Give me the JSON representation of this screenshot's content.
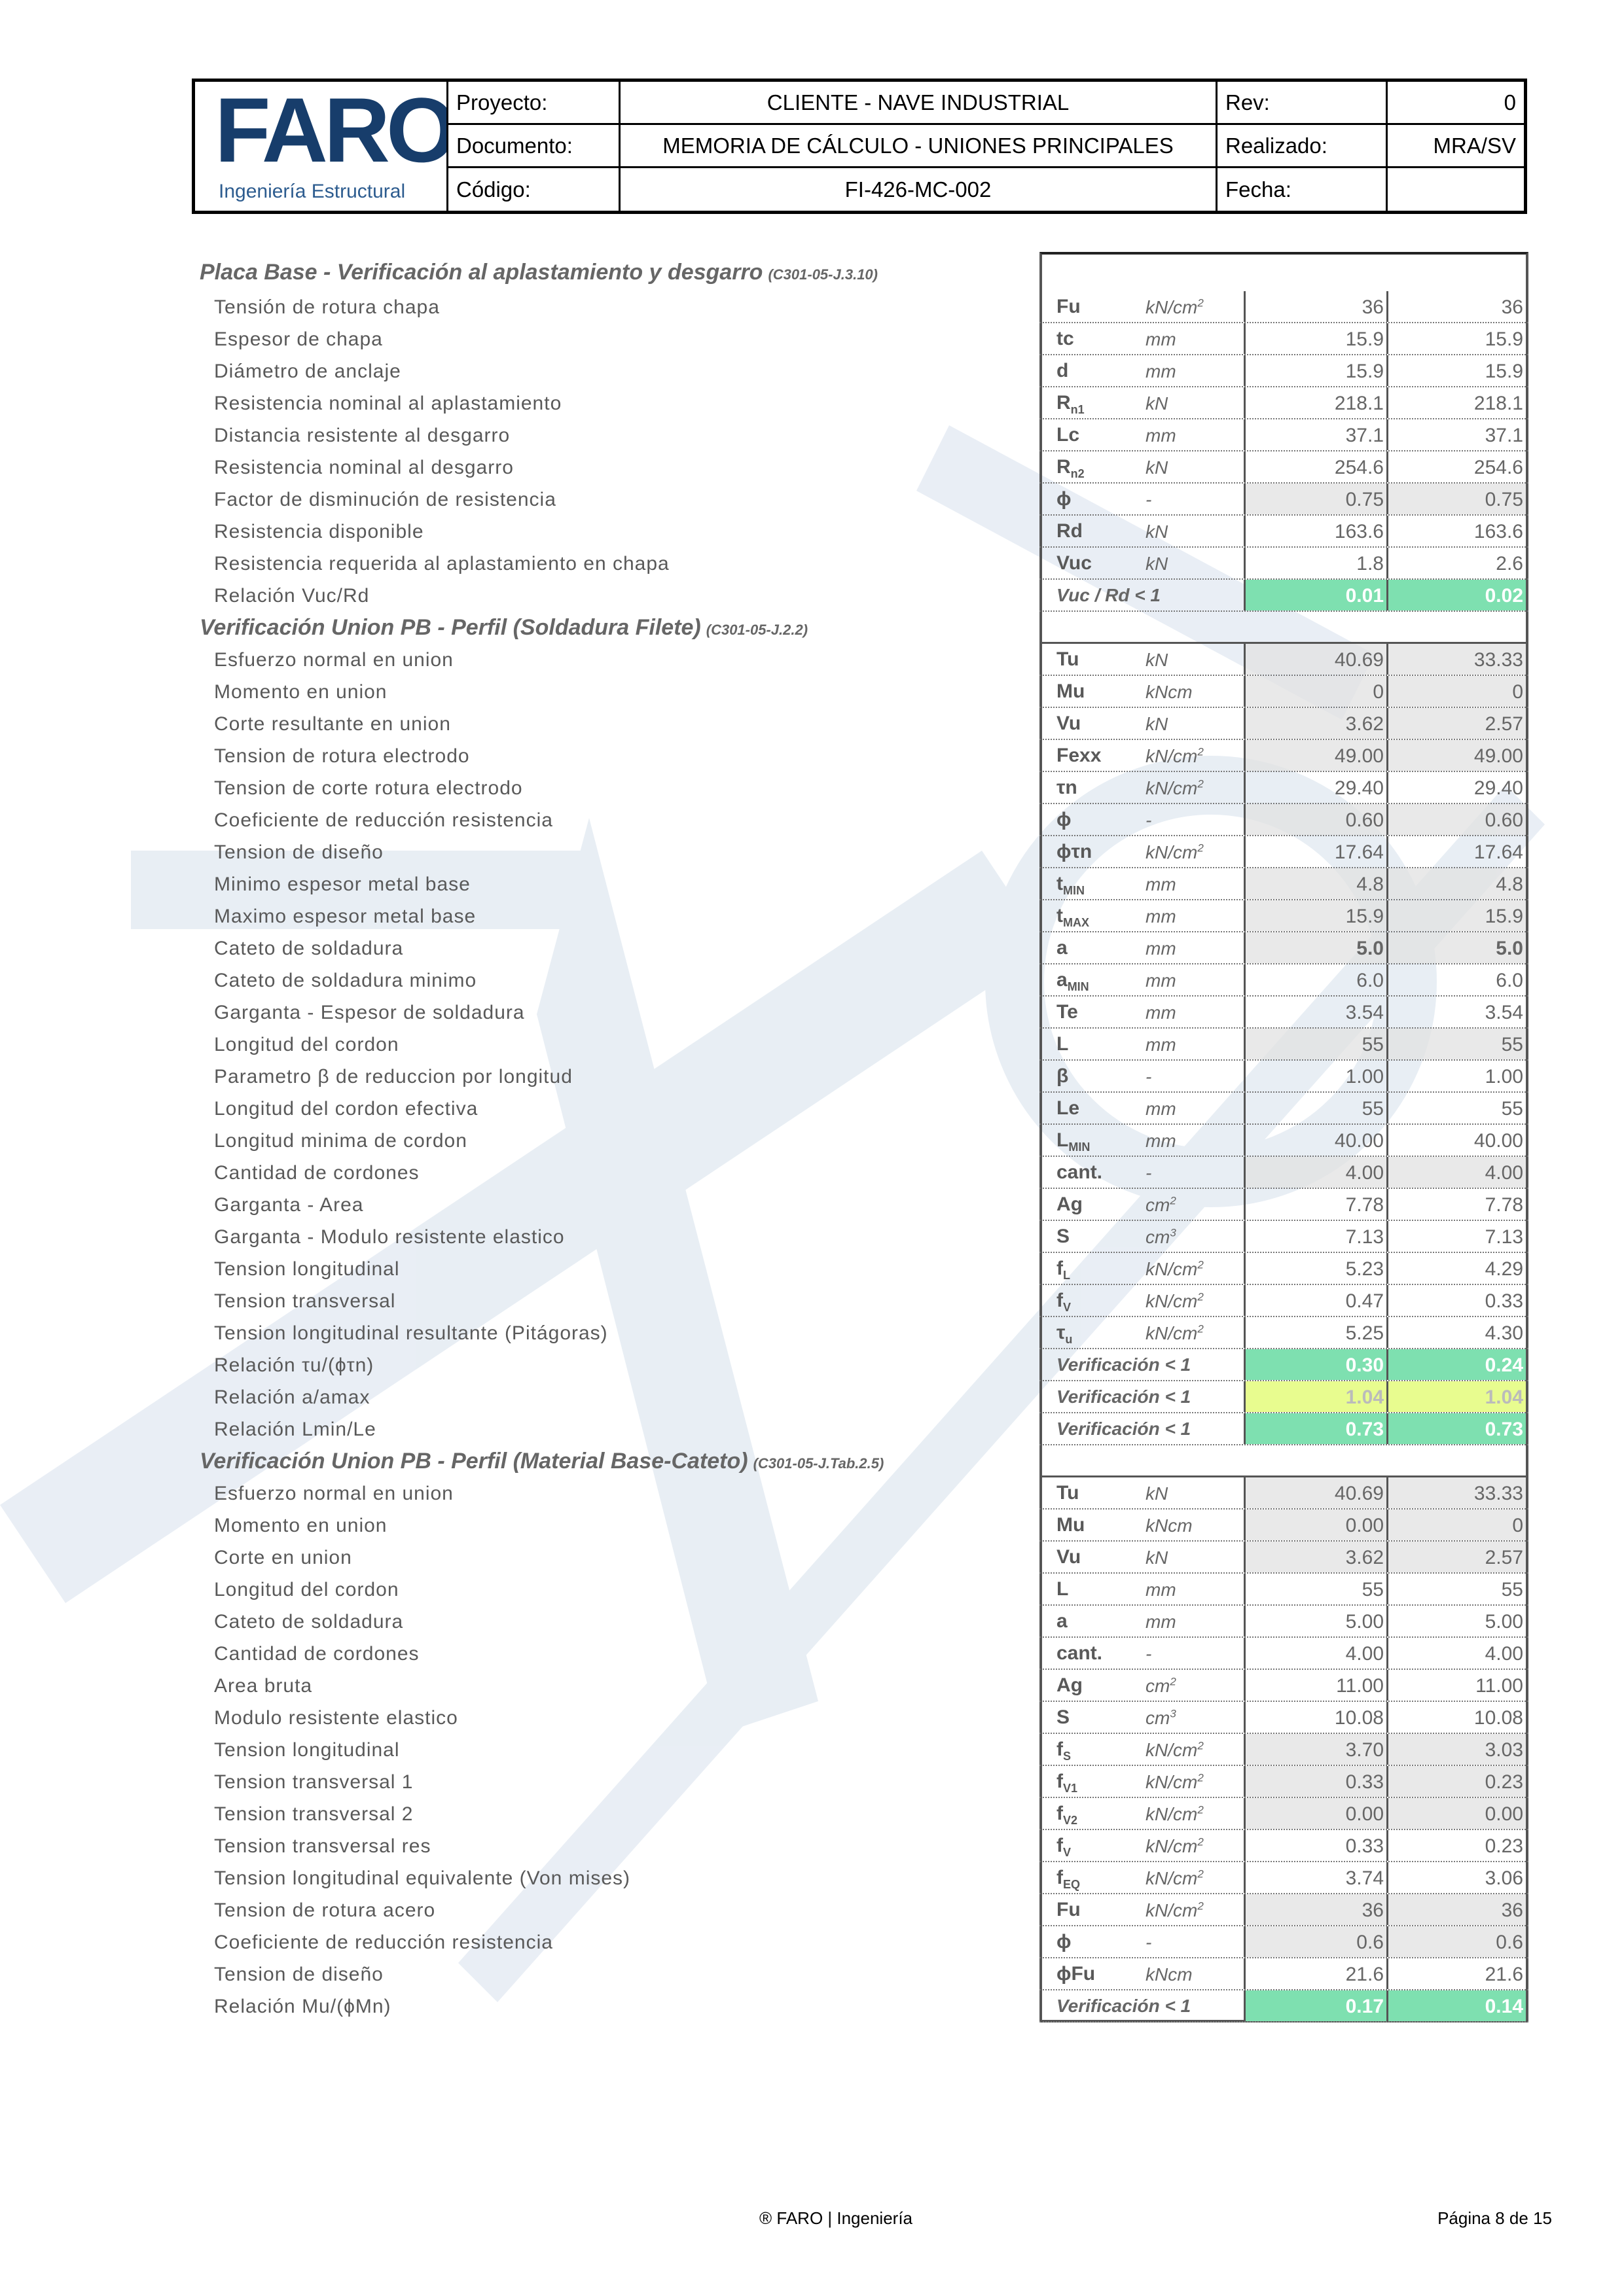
{
  "header": {
    "logo_text": "FARO",
    "logo_subtitle": "Ingeniería Estructural",
    "rows": [
      {
        "label": "Proyecto:",
        "value": "CLIENTE - NAVE INDUSTRIAL",
        "label2": "Rev:",
        "value2": "0"
      },
      {
        "label": "Documento:",
        "value": "MEMORIA DE CÁLCULO - UNIONES PRINCIPALES",
        "label2": "Realizado:",
        "value2": "MRA/SV"
      },
      {
        "label": "Código:",
        "value": "FI-426-MC-002",
        "label2": "Fecha:",
        "value2": ""
      }
    ]
  },
  "colors": {
    "ok": "#7ee0b0",
    "warn": "#e8fc8f",
    "brand": "#173d6b"
  },
  "sections": [
    {
      "title": "Placa Base - Verificación al aplastamiento y desgarro",
      "code": "(C301-05-J.3.10)",
      "rows": [
        {
          "label": "Tensión de rotura chapa",
          "sym": "Fu",
          "unit": "kN/cm",
          "sup": "2",
          "v1": "36",
          "v2": "36"
        },
        {
          "label": "Espesor de chapa",
          "sym": "tc",
          "unit": "mm",
          "v1": "15.9",
          "v2": "15.9"
        },
        {
          "label": "Diámetro de anclaje",
          "sym": "d",
          "unit": "mm",
          "v1": "15.9",
          "v2": "15.9"
        },
        {
          "label": "Resistencia nominal al aplastamiento",
          "sym": "R",
          "sub": "n1",
          "unit": "kN",
          "v1": "218.1",
          "v2": "218.1"
        },
        {
          "label": "Distancia resistente al desgarro",
          "sym": "Lc",
          "unit": "mm",
          "v1": "37.1",
          "v2": "37.1"
        },
        {
          "label": "Resistencia nominal al desgarro",
          "sym": "R",
          "sub": "n2",
          "unit": "kN",
          "v1": "254.6",
          "v2": "254.6"
        },
        {
          "label": "Factor de disminución de resistencia",
          "sym": "ϕ",
          "unit": "-",
          "v1": "0.75",
          "v2": "0.75",
          "shade": true
        },
        {
          "label": "Resistencia disponible",
          "sym": "Rd",
          "unit": "kN",
          "v1": "163.6",
          "v2": "163.6"
        },
        {
          "label": "Resistencia requerida al aplastamiento en chapa",
          "sym": "Vuc",
          "unit": "kN",
          "v1": "1.8",
          "v2": "2.6"
        },
        {
          "label": "Relación Vuc/Rd",
          "verif": "Vuc / Rd < 1",
          "v1": "0.01",
          "v2": "0.02",
          "status1": "ok",
          "status2": "ok"
        }
      ]
    },
    {
      "title": "Verificación Union PB - Perfil (Soldadura Filete)",
      "code": "(C301-05-J.2.2)",
      "rows": [
        {
          "label": "Esfuerzo normal en union",
          "sym": "Tu",
          "unit": "kN",
          "v1": "40.69",
          "v2": "33.33",
          "shade": true
        },
        {
          "label": "Momento en union",
          "sym": "Mu",
          "unit": "kNcm",
          "v1": "0",
          "v2": "0",
          "shade": true
        },
        {
          "label": "Corte resultante en union",
          "sym": "Vu",
          "unit": "kN",
          "v1": "3.62",
          "v2": "2.57",
          "shade": true
        },
        {
          "label": "Tension de rotura electrodo",
          "sym": "Fexx",
          "unit": "kN/cm",
          "sup": "2",
          "v1": "49.00",
          "v2": "49.00",
          "shade": true
        },
        {
          "label": "Tension de corte rotura electrodo",
          "sym": "τn",
          "unit": "kN/cm",
          "sup": "2",
          "v1": "29.40",
          "v2": "29.40"
        },
        {
          "label": "Coeficiente de reducción resistencia",
          "sym": "ϕ",
          "unit": "-",
          "v1": "0.60",
          "v2": "0.60",
          "shade": true
        },
        {
          "label": "Tension de diseño",
          "sym": "ϕτn",
          "unit": "kN/cm",
          "sup": "2",
          "v1": "17.64",
          "v2": "17.64"
        },
        {
          "label": "Minimo espesor metal base",
          "sym": "t",
          "sub": "MIN",
          "unit": "mm",
          "v1": "4.8",
          "v2": "4.8",
          "shade": true
        },
        {
          "label": "Maximo espesor metal base",
          "sym": "t",
          "sub": "MAX",
          "unit": "mm",
          "v1": "15.9",
          "v2": "15.9",
          "shade": true
        },
        {
          "label": "Cateto de soldadura",
          "sym": "a",
          "unit": "mm",
          "v1": "5.0",
          "v2": "5.0",
          "shade": true,
          "bold": true
        },
        {
          "label": "Cateto de soldadura minimo",
          "sym": "a",
          "sub": "MIN",
          "unit": "mm",
          "v1": "6.0",
          "v2": "6.0"
        },
        {
          "label": "Garganta - Espesor de soldadura",
          "sym": "Te",
          "unit": "mm",
          "v1": "3.54",
          "v2": "3.54"
        },
        {
          "label": "Longitud del cordon",
          "sym": "L",
          "unit": "mm",
          "v1": "55",
          "v2": "55",
          "shade": true
        },
        {
          "label": "Parametro β de reduccion por longitud",
          "sym": "β",
          "unit": "-",
          "v1": "1.00",
          "v2": "1.00"
        },
        {
          "label": "Longitud del cordon efectiva",
          "sym": "Le",
          "unit": "mm",
          "v1": "55",
          "v2": "55"
        },
        {
          "label": "Longitud minima de cordon",
          "sym": "L",
          "sub": "MIN",
          "unit": "mm",
          "v1": "40.00",
          "v2": "40.00"
        },
        {
          "label": "Cantidad de cordones",
          "sym": "cant.",
          "unit": "-",
          "v1": "4.00",
          "v2": "4.00",
          "shade": true
        },
        {
          "label": "Garganta - Area",
          "sym": "Ag",
          "unit": "cm",
          "sup": "2",
          "v1": "7.78",
          "v2": "7.78"
        },
        {
          "label": "Garganta - Modulo resistente elastico",
          "sym": "S",
          "unit": "cm",
          "sup": "3",
          "v1": "7.13",
          "v2": "7.13"
        },
        {
          "label": "Tension longitudinal",
          "sym": "f",
          "sub": "L",
          "unit": "kN/cm",
          "sup": "2",
          "v1": "5.23",
          "v2": "4.29"
        },
        {
          "label": "Tension transversal",
          "sym": "f",
          "sub": "V",
          "unit": "kN/cm",
          "sup": "2",
          "v1": "0.47",
          "v2": "0.33"
        },
        {
          "label": "Tension longitudinal resultante (Pitágoras)",
          "sym": "τ",
          "sub": "u",
          "unit": "kN/cm",
          "sup": "2",
          "v1": "5.25",
          "v2": "4.30"
        },
        {
          "label": "Relación τu/(ϕτn)",
          "verif": "Verificación < 1",
          "v1": "0.30",
          "v2": "0.24",
          "status1": "ok",
          "status2": "ok"
        },
        {
          "label": "Relación a/amax",
          "verif": "Verificación < 1",
          "v1": "1.04",
          "v2": "1.04",
          "status1": "warn",
          "status2": "warn"
        },
        {
          "label": "Relación Lmin/Le",
          "verif": "Verificación < 1",
          "v1": "0.73",
          "v2": "0.73",
          "status1": "ok",
          "status2": "ok"
        }
      ]
    },
    {
      "title": "Verificación Union PB - Perfil (Material Base-Cateto)",
      "code": "(C301-05-J.Tab.2.5)",
      "rows": [
        {
          "label": "Esfuerzo normal en union",
          "sym": "Tu",
          "unit": "kN",
          "v1": "40.69",
          "v2": "33.33",
          "shade": true
        },
        {
          "label": "Momento en union",
          "sym": "Mu",
          "unit": "kNcm",
          "v1": "0.00",
          "v2": "0",
          "shade": true
        },
        {
          "label": "Corte en union",
          "sym": "Vu",
          "unit": "kN",
          "v1": "3.62",
          "v2": "2.57",
          "shade": true
        },
        {
          "label": "Longitud del cordon",
          "sym": "L",
          "unit": "mm",
          "v1": "55",
          "v2": "55"
        },
        {
          "label": "Cateto de soldadura",
          "sym": "a",
          "unit": "mm",
          "v1": "5.00",
          "v2": "5.00"
        },
        {
          "label": "Cantidad de cordones",
          "sym": "cant.",
          "unit": "-",
          "v1": "4.00",
          "v2": "4.00"
        },
        {
          "label": "Area bruta",
          "sym": "Ag",
          "unit": "cm",
          "sup": "2",
          "v1": "11.00",
          "v2": "11.00"
        },
        {
          "label": "Modulo resistente elastico",
          "sym": "S",
          "unit": "cm",
          "sup": "3",
          "v1": "10.08",
          "v2": "10.08"
        },
        {
          "label": "Tension longitudinal",
          "sym": "f",
          "sub": "S",
          "unit": "kN/cm",
          "sup": "2",
          "v1": "3.70",
          "v2": "3.03",
          "shade": true
        },
        {
          "label": "Tension transversal 1",
          "sym": "f",
          "sub": "V1",
          "unit": "kN/cm",
          "sup": "2",
          "v1": "0.33",
          "v2": "0.23",
          "shade": true
        },
        {
          "label": "Tension transversal 2",
          "sym": "f",
          "sub": "V2",
          "unit": "kN/cm",
          "sup": "2",
          "v1": "0.00",
          "v2": "0.00",
          "shade": true
        },
        {
          "label": "Tension transversal res",
          "sym": "f",
          "sub": "V",
          "unit": "kN/cm",
          "sup": "2",
          "v1": "0.33",
          "v2": "0.23"
        },
        {
          "label": "Tension longitudinal equivalente (Von mises)",
          "sym": "f",
          "sub": "EQ",
          "unit": "kN/cm",
          "sup": "2",
          "v1": "3.74",
          "v2": "3.06"
        },
        {
          "label": "Tension de rotura acero",
          "sym": "Fu",
          "unit": "kN/cm",
          "sup": "2",
          "v1": "36",
          "v2": "36",
          "shade": true
        },
        {
          "label": "Coeficiente de reducción resistencia",
          "sym": "ϕ",
          "unit": "-",
          "v1": "0.6",
          "v2": "0.6",
          "shade": true
        },
        {
          "label": "Tension de diseño",
          "sym": "ϕFu",
          "unit": "kNcm",
          "v1": "21.6",
          "v2": "21.6"
        },
        {
          "label": "Relación Mu/(ϕMn)",
          "verif": "Verificación < 1",
          "v1": "0.17",
          "v2": "0.14",
          "status1": "ok",
          "status2": "ok"
        }
      ]
    }
  ],
  "footer": {
    "brand": "® FARO | Ingeniería",
    "page": "Página 8 de 15"
  }
}
